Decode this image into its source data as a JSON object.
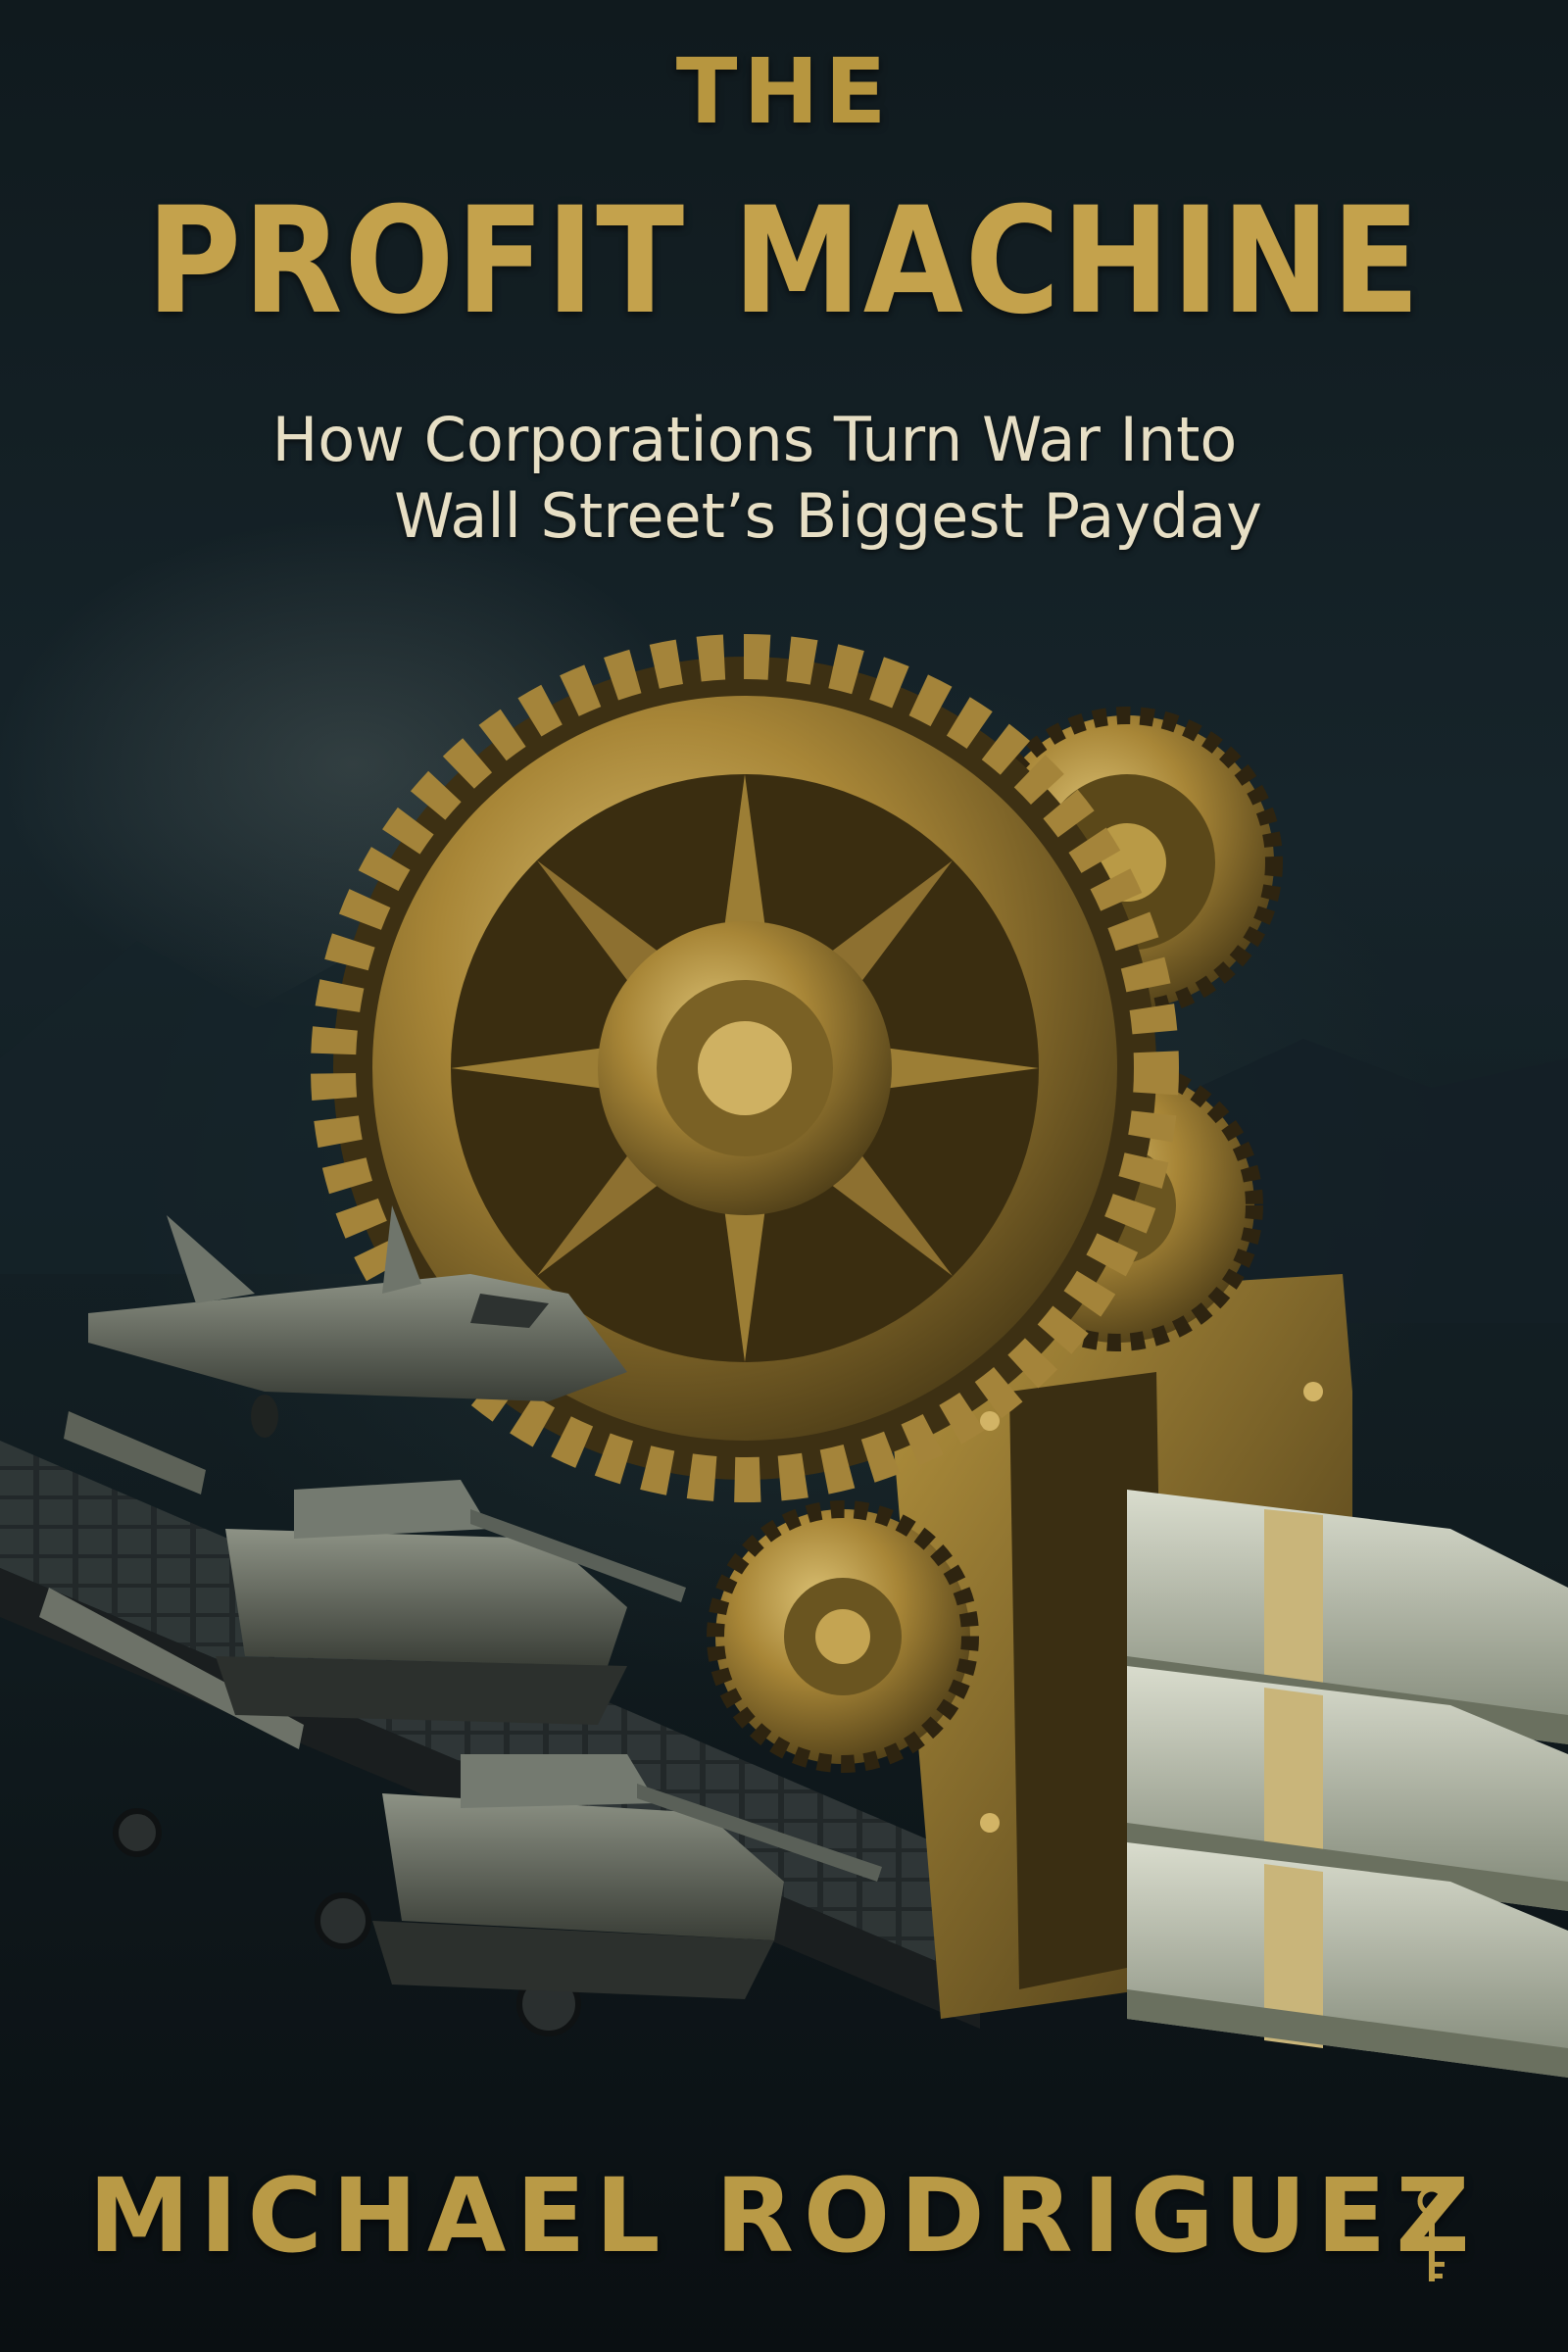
{
  "cover": {
    "title_line1": "THE",
    "title_line2": "PROFIT MACHINE",
    "subtitle_line1": "How Corporations Turn War Into",
    "subtitle_line2": "Wall Street’s Biggest Payday",
    "author": "MICHAEL RODRIGUEZ"
  },
  "colors": {
    "gold": "#c4a24c",
    "subtitle": "#e7dfc5",
    "background": "#101a1e"
  },
  "icons": [
    "gear-icon",
    "fighter-jet-icon",
    "tank-icon",
    "missile-icon",
    "cash-stack-icon",
    "key-icon"
  ]
}
